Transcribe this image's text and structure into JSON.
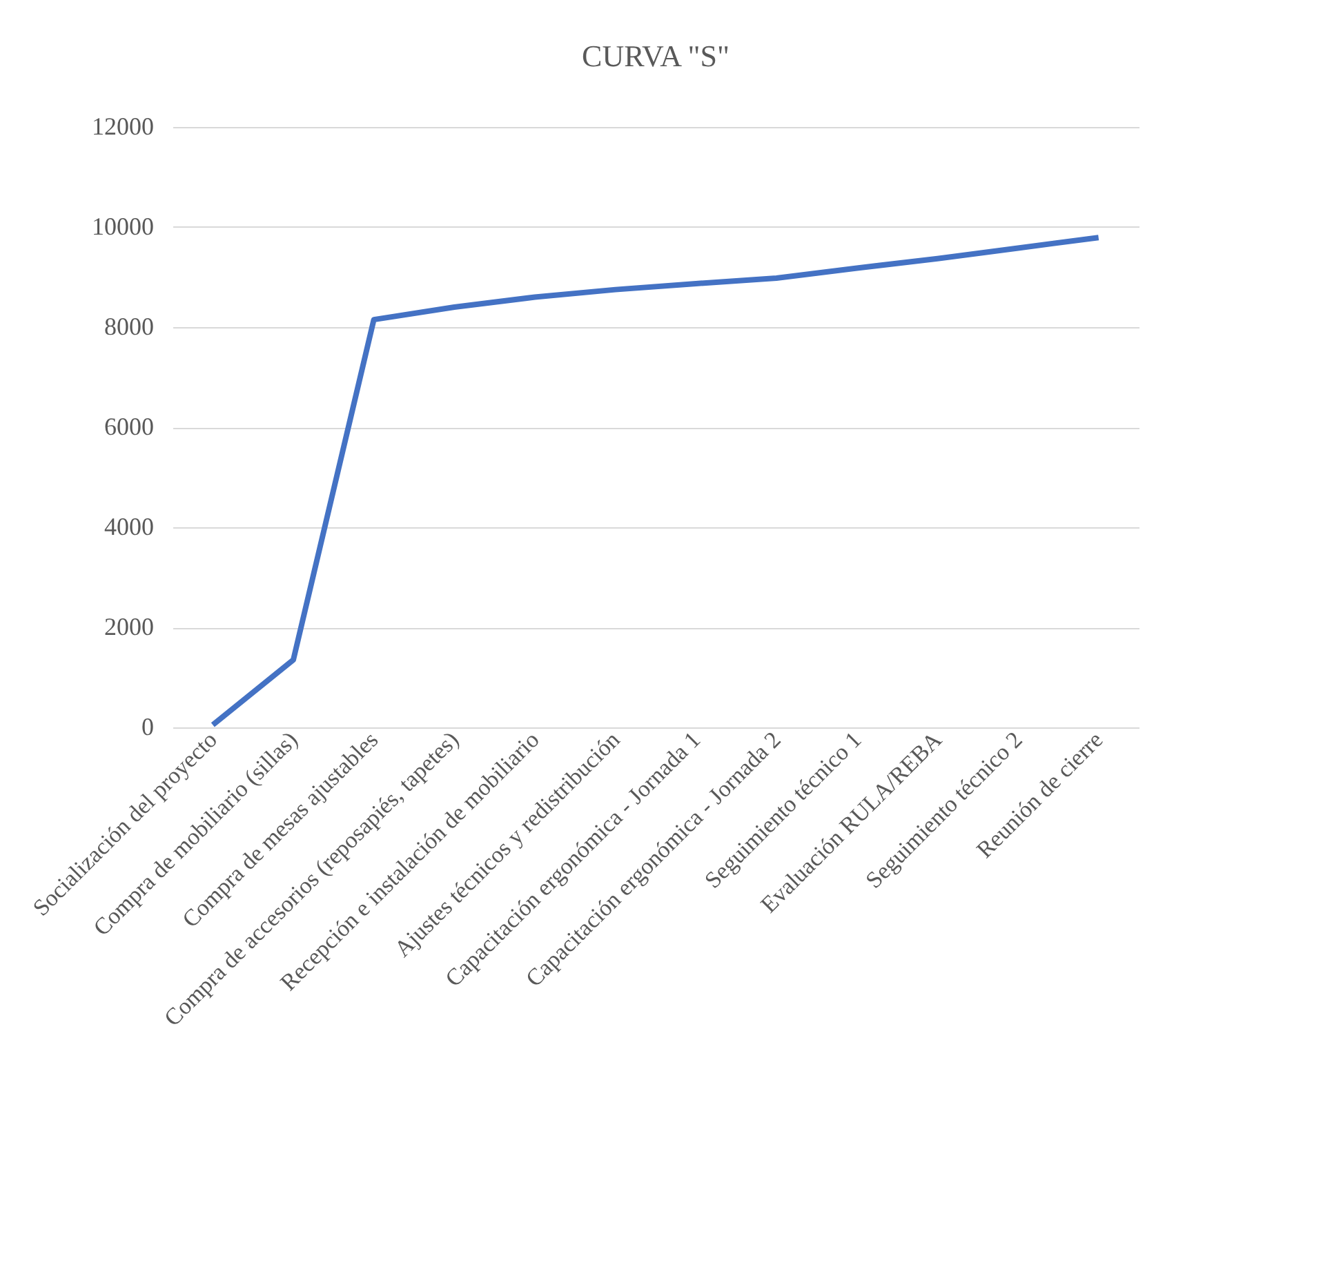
{
  "chart_data": {
    "type": "line",
    "title": "CURVA  \"S\"",
    "categories": [
      "Socialización del proyecto",
      "Compra de mobiliario (sillas)",
      "Compra de mesas ajustables",
      "Compra de accesorios (reposapiés, tapetes)",
      "Recepción e instalación de mobiliario",
      "Ajustes técnicos y redistribución",
      "Capacitación ergonómica - Jornada 1",
      "Capacitación ergonómica - Jornada 2",
      "Seguimiento técnico 1",
      "Evaluación RULA/REBA",
      "Seguimiento técnico 2",
      "Reunión de cierre"
    ],
    "series": [
      {
        "color": "#4472c4",
        "values": [
          50,
          1350,
          8150,
          8400,
          8600,
          8750,
          8870,
          8980,
          9180,
          9370,
          9580,
          9790
        ]
      }
    ],
    "ylim": [
      0,
      12000
    ],
    "yticks": [
      0,
      2000,
      4000,
      6000,
      8000,
      10000,
      12000
    ],
    "grid": "y",
    "marker": "none",
    "line_style": "solid"
  }
}
